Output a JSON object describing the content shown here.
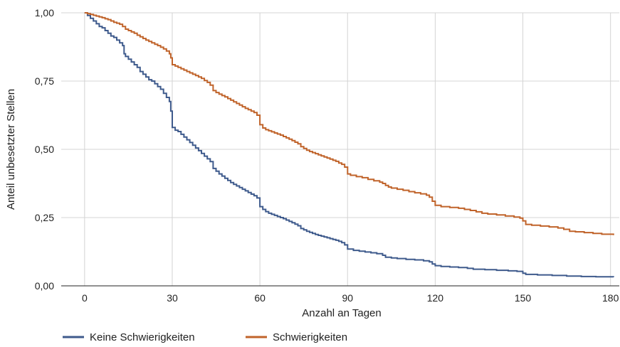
{
  "chart_data": {
    "type": "line",
    "xlabel": "Anzahl an Tagen",
    "ylabel": "Anteil unbesetzter Stellen",
    "xlim": [
      -8,
      183
    ],
    "ylim": [
      0,
      1
    ],
    "x_ticks": [
      0,
      30,
      60,
      90,
      120,
      150,
      180
    ],
    "x_tick_labels": [
      "0",
      "30",
      "60",
      "90",
      "120",
      "150",
      "180"
    ],
    "y_ticks": [
      0,
      0.25,
      0.5,
      0.75,
      1
    ],
    "y_tick_labels": [
      "0,00",
      "0,25",
      "0,50",
      "0,75",
      "1,00"
    ],
    "grid": true,
    "legend_position": "bottom-left",
    "step": true,
    "series": [
      {
        "name": "Keine Schwierigkeiten",
        "color": "#3e5a8c",
        "points": [
          [
            0,
            1.0
          ],
          [
            1,
            0.99
          ],
          [
            2,
            0.98
          ],
          [
            3,
            0.97
          ],
          [
            4,
            0.96
          ],
          [
            5,
            0.95
          ],
          [
            6,
            0.945
          ],
          [
            7,
            0.935
          ],
          [
            8,
            0.925
          ],
          [
            9,
            0.915
          ],
          [
            10,
            0.91
          ],
          [
            11,
            0.9
          ],
          [
            12,
            0.89
          ],
          [
            13,
            0.88
          ],
          [
            13.5,
            0.85
          ],
          [
            14,
            0.84
          ],
          [
            15,
            0.83
          ],
          [
            16,
            0.82
          ],
          [
            17,
            0.81
          ],
          [
            18,
            0.8
          ],
          [
            19,
            0.785
          ],
          [
            20,
            0.775
          ],
          [
            21,
            0.765
          ],
          [
            22,
            0.755
          ],
          [
            23,
            0.75
          ],
          [
            24,
            0.74
          ],
          [
            25,
            0.73
          ],
          [
            26,
            0.72
          ],
          [
            27,
            0.705
          ],
          [
            28,
            0.69
          ],
          [
            29,
            0.675
          ],
          [
            29.5,
            0.64
          ],
          [
            30,
            0.58
          ],
          [
            31,
            0.57
          ],
          [
            32,
            0.565
          ],
          [
            33,
            0.555
          ],
          [
            34,
            0.545
          ],
          [
            35,
            0.535
          ],
          [
            36,
            0.525
          ],
          [
            37,
            0.515
          ],
          [
            38,
            0.505
          ],
          [
            39,
            0.495
          ],
          [
            40,
            0.485
          ],
          [
            41,
            0.475
          ],
          [
            42,
            0.465
          ],
          [
            43,
            0.455
          ],
          [
            44,
            0.43
          ],
          [
            45,
            0.42
          ],
          [
            46,
            0.41
          ],
          [
            47,
            0.402
          ],
          [
            48,
            0.394
          ],
          [
            49,
            0.386
          ],
          [
            50,
            0.378
          ],
          [
            51,
            0.372
          ],
          [
            52,
            0.366
          ],
          [
            53,
            0.36
          ],
          [
            54,
            0.354
          ],
          [
            55,
            0.348
          ],
          [
            56,
            0.342
          ],
          [
            57,
            0.336
          ],
          [
            58,
            0.33
          ],
          [
            59,
            0.322
          ],
          [
            60,
            0.29
          ],
          [
            61,
            0.28
          ],
          [
            62,
            0.272
          ],
          [
            63,
            0.266
          ],
          [
            64,
            0.262
          ],
          [
            65,
            0.258
          ],
          [
            66,
            0.254
          ],
          [
            67,
            0.25
          ],
          [
            68,
            0.246
          ],
          [
            69,
            0.241
          ],
          [
            70,
            0.236
          ],
          [
            71,
            0.231
          ],
          [
            72,
            0.226
          ],
          [
            73,
            0.22
          ],
          [
            74,
            0.21
          ],
          [
            75,
            0.205
          ],
          [
            76,
            0.2
          ],
          [
            77,
            0.196
          ],
          [
            78,
            0.192
          ],
          [
            79,
            0.188
          ],
          [
            80,
            0.185
          ],
          [
            81,
            0.182
          ],
          [
            82,
            0.179
          ],
          [
            83,
            0.176
          ],
          [
            84,
            0.173
          ],
          [
            85,
            0.17
          ],
          [
            86,
            0.167
          ],
          [
            87,
            0.163
          ],
          [
            88,
            0.158
          ],
          [
            89,
            0.15
          ],
          [
            90,
            0.135
          ],
          [
            92,
            0.13
          ],
          [
            94,
            0.127
          ],
          [
            96,
            0.124
          ],
          [
            98,
            0.121
          ],
          [
            100,
            0.118
          ],
          [
            102,
            0.112
          ],
          [
            103,
            0.105
          ],
          [
            105,
            0.102
          ],
          [
            107,
            0.1
          ],
          [
            110,
            0.097
          ],
          [
            113,
            0.095
          ],
          [
            116,
            0.092
          ],
          [
            118,
            0.088
          ],
          [
            119,
            0.08
          ],
          [
            120,
            0.074
          ],
          [
            122,
            0.071
          ],
          [
            125,
            0.069
          ],
          [
            128,
            0.067
          ],
          [
            131,
            0.064
          ],
          [
            133,
            0.061
          ],
          [
            137,
            0.059
          ],
          [
            141,
            0.057
          ],
          [
            145,
            0.055
          ],
          [
            148,
            0.053
          ],
          [
            150,
            0.046
          ],
          [
            151,
            0.042
          ],
          [
            155,
            0.04
          ],
          [
            160,
            0.038
          ],
          [
            165,
            0.036
          ],
          [
            170,
            0.034
          ],
          [
            175,
            0.033
          ],
          [
            181,
            0.032
          ]
        ]
      },
      {
        "name": "Schwierigkeiten",
        "color": "#c0632a",
        "points": [
          [
            0,
            1.0
          ],
          [
            1,
            0.997
          ],
          [
            2,
            0.994
          ],
          [
            3,
            0.991
          ],
          [
            4,
            0.988
          ],
          [
            5,
            0.985
          ],
          [
            6,
            0.982
          ],
          [
            7,
            0.978
          ],
          [
            8,
            0.975
          ],
          [
            9,
            0.97
          ],
          [
            10,
            0.965
          ],
          [
            11,
            0.962
          ],
          [
            12,
            0.958
          ],
          [
            13,
            0.95
          ],
          [
            14,
            0.94
          ],
          [
            15,
            0.935
          ],
          [
            16,
            0.93
          ],
          [
            17,
            0.925
          ],
          [
            18,
            0.918
          ],
          [
            19,
            0.912
          ],
          [
            20,
            0.906
          ],
          [
            21,
            0.9
          ],
          [
            22,
            0.895
          ],
          [
            23,
            0.89
          ],
          [
            24,
            0.885
          ],
          [
            25,
            0.88
          ],
          [
            26,
            0.874
          ],
          [
            27,
            0.868
          ],
          [
            28,
            0.86
          ],
          [
            29,
            0.85
          ],
          [
            29.5,
            0.835
          ],
          [
            30,
            0.81
          ],
          [
            31,
            0.805
          ],
          [
            32,
            0.8
          ],
          [
            33,
            0.795
          ],
          [
            34,
            0.79
          ],
          [
            35,
            0.785
          ],
          [
            36,
            0.78
          ],
          [
            37,
            0.775
          ],
          [
            38,
            0.77
          ],
          [
            39,
            0.765
          ],
          [
            40,
            0.76
          ],
          [
            41,
            0.752
          ],
          [
            42,
            0.745
          ],
          [
            43,
            0.735
          ],
          [
            44,
            0.715
          ],
          [
            45,
            0.708
          ],
          [
            46,
            0.702
          ],
          [
            47,
            0.697
          ],
          [
            48,
            0.692
          ],
          [
            49,
            0.686
          ],
          [
            50,
            0.68
          ],
          [
            51,
            0.674
          ],
          [
            52,
            0.668
          ],
          [
            53,
            0.662
          ],
          [
            54,
            0.656
          ],
          [
            55,
            0.65
          ],
          [
            56,
            0.645
          ],
          [
            57,
            0.64
          ],
          [
            58,
            0.635
          ],
          [
            59,
            0.625
          ],
          [
            60,
            0.59
          ],
          [
            61,
            0.578
          ],
          [
            62,
            0.572
          ],
          [
            63,
            0.568
          ],
          [
            64,
            0.564
          ],
          [
            65,
            0.56
          ],
          [
            66,
            0.556
          ],
          [
            67,
            0.552
          ],
          [
            68,
            0.547
          ],
          [
            69,
            0.542
          ],
          [
            70,
            0.537
          ],
          [
            71,
            0.532
          ],
          [
            72,
            0.526
          ],
          [
            73,
            0.52
          ],
          [
            74,
            0.51
          ],
          [
            75,
            0.503
          ],
          [
            76,
            0.497
          ],
          [
            77,
            0.492
          ],
          [
            78,
            0.488
          ],
          [
            79,
            0.484
          ],
          [
            80,
            0.48
          ],
          [
            81,
            0.476
          ],
          [
            82,
            0.472
          ],
          [
            83,
            0.468
          ],
          [
            84,
            0.464
          ],
          [
            85,
            0.46
          ],
          [
            86,
            0.456
          ],
          [
            87,
            0.45
          ],
          [
            88,
            0.445
          ],
          [
            89,
            0.435
          ],
          [
            90,
            0.41
          ],
          [
            91,
            0.405
          ],
          [
            93,
            0.4
          ],
          [
            95,
            0.396
          ],
          [
            97,
            0.39
          ],
          [
            99,
            0.385
          ],
          [
            101,
            0.38
          ],
          [
            102,
            0.375
          ],
          [
            103,
            0.368
          ],
          [
            104,
            0.362
          ],
          [
            105,
            0.358
          ],
          [
            107,
            0.354
          ],
          [
            109,
            0.35
          ],
          [
            111,
            0.345
          ],
          [
            113,
            0.341
          ],
          [
            115,
            0.337
          ],
          [
            117,
            0.332
          ],
          [
            118,
            0.325
          ],
          [
            119,
            0.31
          ],
          [
            120,
            0.295
          ],
          [
            122,
            0.29
          ],
          [
            125,
            0.287
          ],
          [
            128,
            0.284
          ],
          [
            130,
            0.28
          ],
          [
            132,
            0.276
          ],
          [
            134,
            0.271
          ],
          [
            136,
            0.266
          ],
          [
            138,
            0.263
          ],
          [
            141,
            0.26
          ],
          [
            144,
            0.256
          ],
          [
            147,
            0.252
          ],
          [
            149,
            0.248
          ],
          [
            150,
            0.238
          ],
          [
            151,
            0.225
          ],
          [
            153,
            0.222
          ],
          [
            156,
            0.219
          ],
          [
            159,
            0.216
          ],
          [
            162,
            0.212
          ],
          [
            164,
            0.207
          ],
          [
            166,
            0.2
          ],
          [
            168,
            0.198
          ],
          [
            171,
            0.195
          ],
          [
            174,
            0.192
          ],
          [
            177,
            0.189
          ],
          [
            181,
            0.186
          ]
        ]
      }
    ]
  }
}
